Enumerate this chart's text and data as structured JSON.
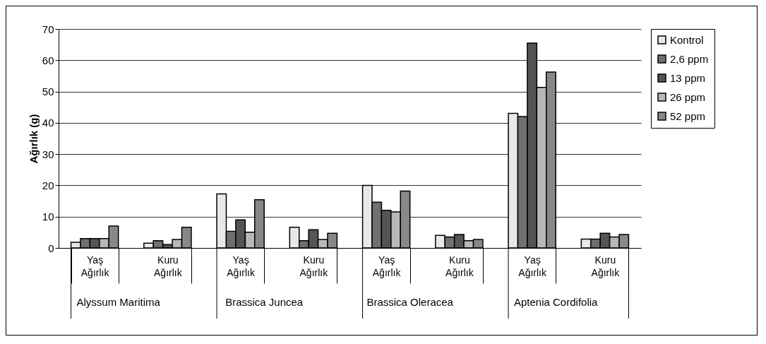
{
  "chart_data": {
    "type": "bar",
    "ylabel": "Ağırlık (g)",
    "categories": [
      "Yaş Ağırlık",
      "Kuru Ağırlık",
      "Yaş Ağırlık",
      "Kuru Ağırlık",
      "Yaş Ağırlık",
      "Kuru Ağırlık",
      "Yaş Ağırlık",
      "Kuru Ağırlık"
    ],
    "annotations": [
      "Alyssum Maritima",
      "Brassica Juncea",
      "Brassica Oleracea",
      "Aptenia Cordifolia"
    ],
    "series": [
      {
        "name": "Kontrol",
        "color": "#e8e8e8",
        "values": [
          1.8,
          1.5,
          17.3,
          6.6,
          20,
          4,
          43,
          2.8
        ]
      },
      {
        "name": "2,6 ppm",
        "color": "#707070",
        "values": [
          3,
          2.3,
          5.3,
          2.3,
          14.6,
          3.5,
          42,
          2.8
        ]
      },
      {
        "name": "13 ppm",
        "color": "#555555",
        "values": [
          3,
          1.1,
          9,
          5.8,
          12,
          4.3,
          65.5,
          4.7
        ]
      },
      {
        "name": "26 ppm",
        "color": "#b8b8b8",
        "values": [
          3,
          2.7,
          5,
          2.7,
          11.5,
          2.3,
          51.3,
          3.5
        ]
      },
      {
        "name": "52 ppm",
        "color": "#888888",
        "values": [
          7,
          6.6,
          15.4,
          4.7,
          18.2,
          2.7,
          56.2,
          4.3
        ]
      }
    ],
    "ylim": [
      0,
      70
    ],
    "yticks": [
      0,
      10,
      20,
      30,
      40,
      50,
      60,
      70
    ],
    "grid": "y",
    "legend": "right"
  }
}
